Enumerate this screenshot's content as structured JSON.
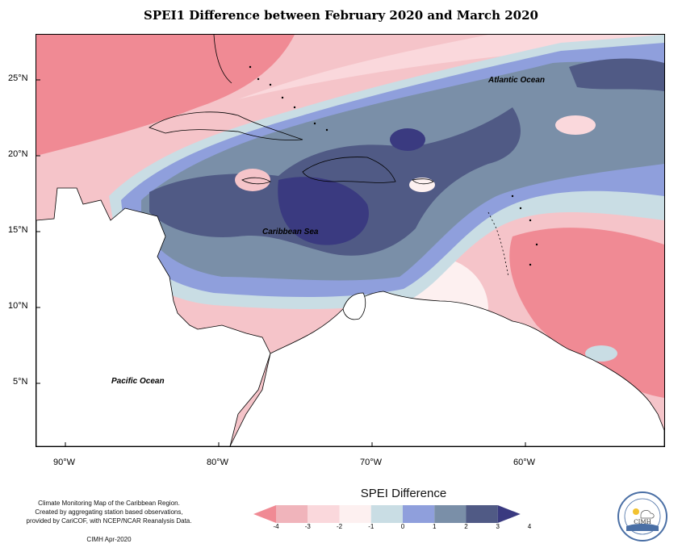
{
  "title": "SPEI1 Difference between February 2020 and March 2020",
  "map": {
    "lat_labels": [
      {
        "value": 25,
        "label": "25°N"
      },
      {
        "value": 20,
        "label": "20°N"
      },
      {
        "value": 15,
        "label": "15°N"
      },
      {
        "value": 10,
        "label": "10°N"
      },
      {
        "value": 5,
        "label": "5°N"
      }
    ],
    "lon_labels": [
      {
        "value": -90,
        "label": "90°W"
      },
      {
        "value": -80,
        "label": "80°W"
      },
      {
        "value": -70,
        "label": "70°W"
      },
      {
        "value": -60,
        "label": "60°W"
      }
    ],
    "labels": {
      "atlantic": "Atlantic Ocean",
      "caribbean": "Caribbean Sea",
      "pacific": "Pacific Ocean"
    }
  },
  "legend": {
    "title": "SPEI Difference",
    "ticks": [
      "-4",
      "-3",
      "-2",
      "-1",
      "0",
      "1",
      "2",
      "3",
      "4"
    ],
    "colors": [
      "#f08a94",
      "#f0b4bb",
      "#fad8dc",
      "#fdf0f0",
      "#c9dde4",
      "#8f9fdc",
      "#7a8fa8",
      "#505a85",
      "#3a3a80"
    ]
  },
  "footer": {
    "line1": "Climate Monitoring Map of the Caribbean Region.",
    "line2": "Created by aggregating station based observations,",
    "line3": "provided by CariCOF, with NCEP/NCAR Reanalysis Data.",
    "credit": "CIMH Apr-2020"
  },
  "logo": {
    "text": "CIMH"
  }
}
